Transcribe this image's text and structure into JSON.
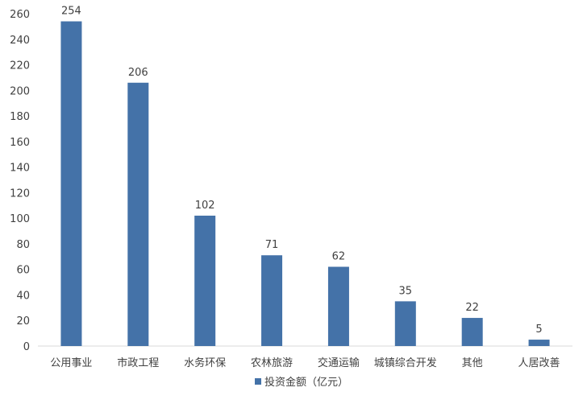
{
  "chart_data": {
    "type": "bar",
    "categories": [
      "公用事业",
      "市政工程",
      "水务环保",
      "农林旅游",
      "交通运输",
      "城镇综合开发",
      "其他",
      "人居改善"
    ],
    "series": [
      {
        "name": "投资金额（亿元）",
        "values": [
          254,
          206,
          102,
          71,
          62,
          35,
          22,
          5
        ],
        "color": "#4472a8"
      }
    ],
    "data_labels": [
      "254",
      "206",
      "102",
      "71",
      "62",
      "35",
      "22",
      "5"
    ],
    "ylim": [
      0,
      260
    ],
    "yticks": [
      0,
      20,
      40,
      60,
      80,
      100,
      120,
      140,
      160,
      180,
      200,
      220,
      240,
      260
    ],
    "title": "",
    "xlabel": "",
    "ylabel": "",
    "grid": false,
    "legend_position": "bottom",
    "axis_color": "#d9d9d9"
  }
}
